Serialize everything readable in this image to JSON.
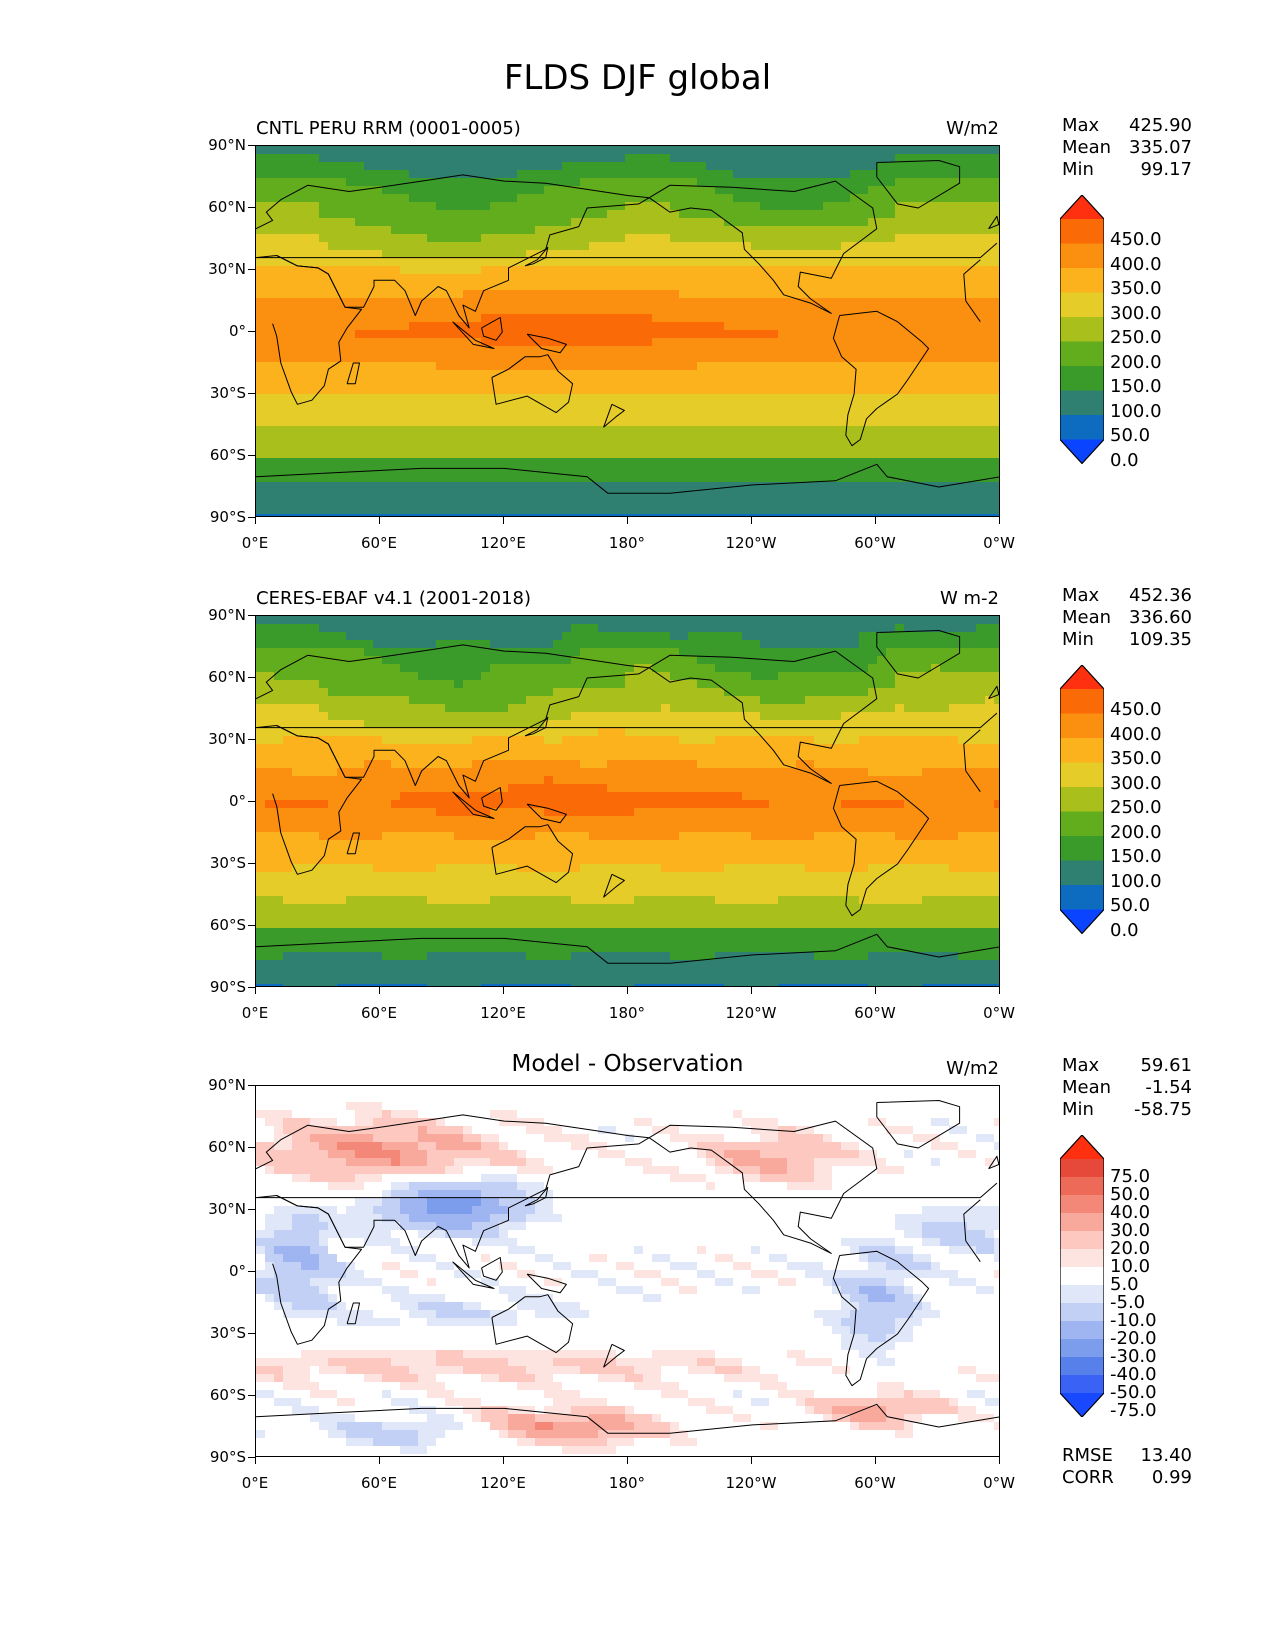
{
  "figure_title": "FLDS DJF global",
  "axes": {
    "lat_labels": [
      "90°N",
      "60°N",
      "30°N",
      "0°",
      "30°S",
      "60°S",
      "90°S"
    ],
    "lon_labels": [
      "0°E",
      "60°E",
      "120°E",
      "180°",
      "120°W",
      "60°W",
      "0°W"
    ]
  },
  "panels": [
    {
      "title": "CNTL PERU RRM (0001-0005)",
      "units": "W/m2",
      "stats": [
        {
          "label": "Max",
          "value": "425.90"
        },
        {
          "label": "Mean",
          "value": "335.07"
        },
        {
          "label": "Min",
          "value": "99.17"
        }
      ],
      "colorbar_labels": [
        "450.0",
        "400.0",
        "350.0",
        "300.0",
        "250.0",
        "200.0",
        "150.0",
        "100.0",
        "50.0",
        "0.0"
      ]
    },
    {
      "title": "CERES-EBAF v4.1 (2001-2018)",
      "units": "W m-2",
      "stats": [
        {
          "label": "Max",
          "value": "452.36"
        },
        {
          "label": "Mean",
          "value": "336.60"
        },
        {
          "label": "Min",
          "value": "109.35"
        }
      ],
      "colorbar_labels": [
        "450.0",
        "400.0",
        "350.0",
        "300.0",
        "250.0",
        "200.0",
        "150.0",
        "100.0",
        "50.0",
        "0.0"
      ]
    },
    {
      "title": "Model - Observation",
      "units": "W/m2",
      "stats": [
        {
          "label": "Max",
          "value": "59.61"
        },
        {
          "label": "Mean",
          "value": "-1.54"
        },
        {
          "label": "Min",
          "value": "-58.75"
        }
      ],
      "colorbar_labels": [
        "75.0",
        "50.0",
        "40.0",
        "30.0",
        "20.0",
        "10.0",
        "5.0",
        "-5.0",
        "-10.0",
        "-20.0",
        "-30.0",
        "-40.0",
        "-50.0",
        "-75.0"
      ],
      "stats_extra": [
        {
          "label": "RMSE",
          "value": "13.40"
        },
        {
          "label": "CORR",
          "value": "0.99"
        }
      ]
    }
  ],
  "colors": {
    "abs_scale": [
      "#0a44ff",
      "#0e6cc0",
      "#2f8070",
      "#3a9a2a",
      "#62ad1e",
      "#a9c01c",
      "#e6cc28",
      "#fbb21c",
      "#fb8f10",
      "#fa6a06",
      "#ff3010"
    ],
    "diff_scale": [
      "#1848ff",
      "#3a62f4",
      "#5880ea",
      "#7c9cec",
      "#9fb5f1",
      "#c3d0f5",
      "#e0e7f8",
      "#ffffff",
      "#fde4e0",
      "#fcc8c0",
      "#f9a89c",
      "#f48878",
      "#ee6a58",
      "#e6483a",
      "#ff3010"
    ]
  }
}
